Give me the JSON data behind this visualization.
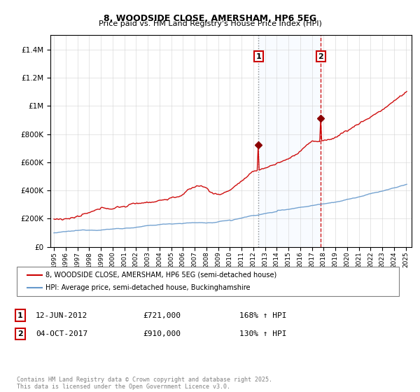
{
  "title1": "8, WOODSIDE CLOSE, AMERSHAM, HP6 5EG",
  "title2": "Price paid vs. HM Land Registry's House Price Index (HPI)",
  "legend1": "8, WOODSIDE CLOSE, AMERSHAM, HP6 5EG (semi-detached house)",
  "legend2": "HPI: Average price, semi-detached house, Buckinghamshire",
  "transaction1_date": "12-JUN-2012",
  "transaction1_price": 721000,
  "transaction1_label": "168% ↑ HPI",
  "transaction2_date": "04-OCT-2017",
  "transaction2_price": 910000,
  "transaction2_label": "130% ↑ HPI",
  "transaction1_year": 2012.45,
  "transaction2_year": 2017.76,
  "footnote": "Contains HM Land Registry data © Crown copyright and database right 2025.\nThis data is licensed under the Open Government Licence v3.0.",
  "red_color": "#cc0000",
  "blue_color": "#6699cc",
  "shade_color": "#ddeeff",
  "marker_color": "#8B0000",
  "ylim": [
    0,
    1500000
  ],
  "xlim_start": 1995,
  "xlim_end": 2025.5
}
